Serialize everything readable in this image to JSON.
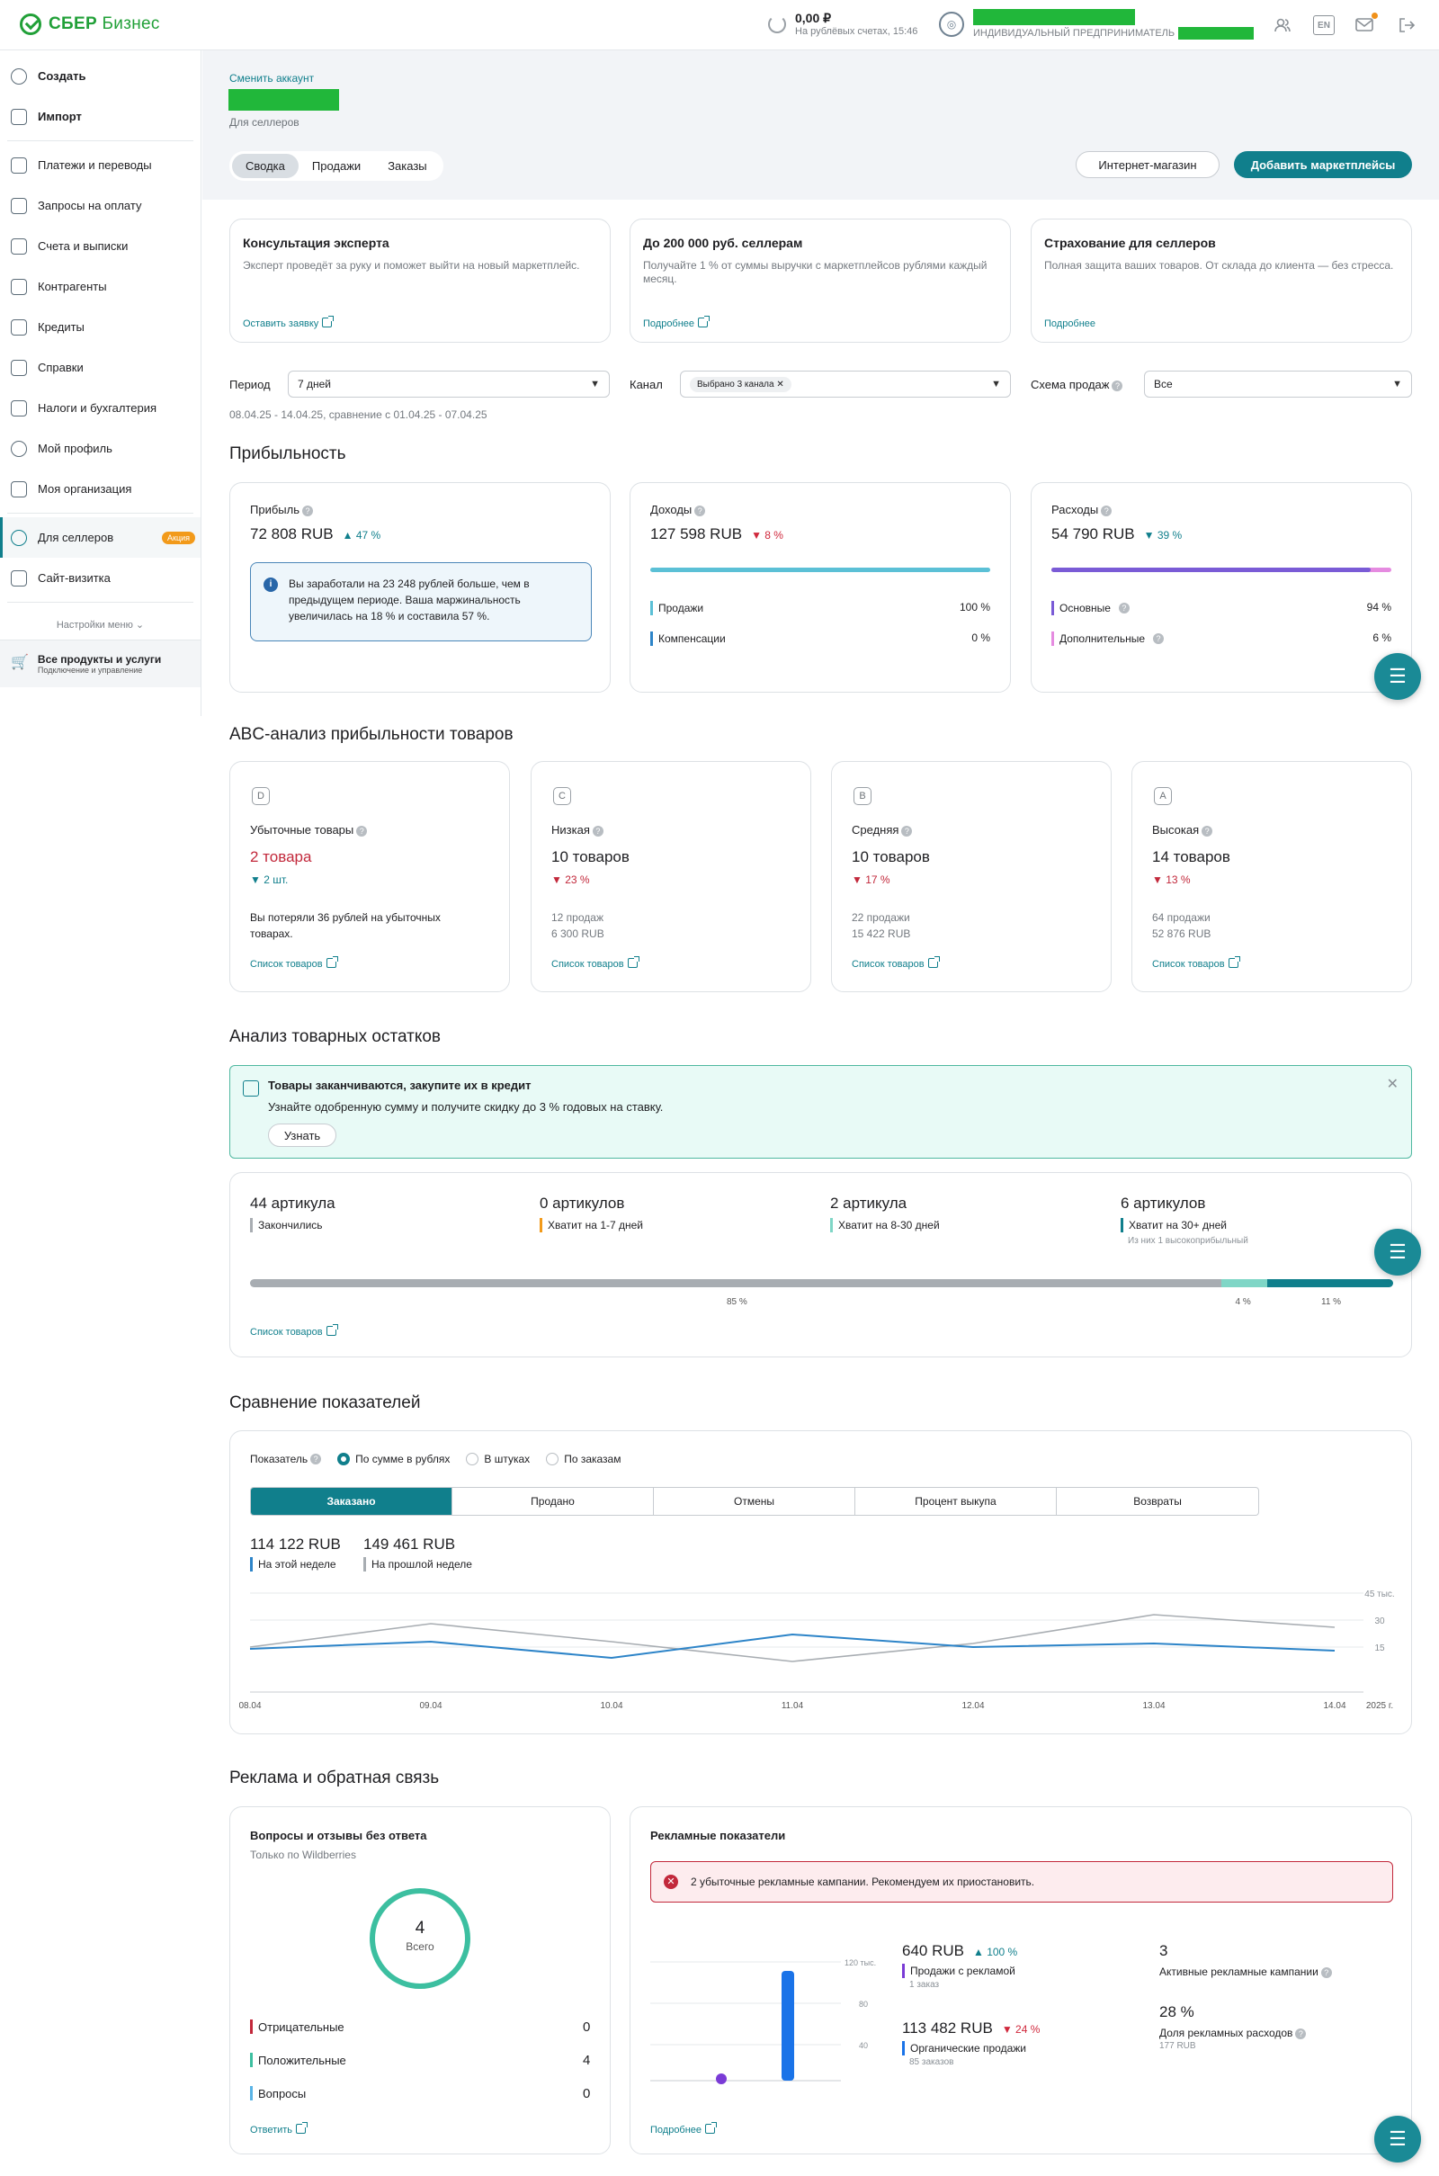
{
  "brand": {
    "name_a": "СБЕР",
    "name_b": "Бизнес"
  },
  "top": {
    "balance_amount": "0,00 ₽",
    "balance_sub": "На рублёвых счетах, 15:46",
    "org_type": "ИНДИВИДУАЛЬНЫЙ ПРЕДПРИНИМАТЕЛЬ",
    "lang": "EN",
    "icons": [
      "refresh-icon",
      "profile-icon",
      "mail-icon",
      "logout-icon"
    ]
  },
  "sidebar": {
    "top_items": [
      {
        "label": "Создать",
        "icon": "plus-icon"
      },
      {
        "label": "Импорт",
        "icon": "import-icon"
      }
    ],
    "items": [
      {
        "label": "Платежи и переводы"
      },
      {
        "label": "Запросы на оплату"
      },
      {
        "label": "Счета и выписки"
      },
      {
        "label": "Контрагенты"
      },
      {
        "label": "Кредиты"
      },
      {
        "label": "Справки"
      },
      {
        "label": "Налоги и бухгалтерия"
      },
      {
        "label": "Мой профиль"
      },
      {
        "label": "Моя организация"
      }
    ],
    "sellers": {
      "label": "Для селлеров",
      "promo": "Акция"
    },
    "site": {
      "label": "Сайт-визитка"
    },
    "settings": "Настройки меню",
    "bottom": {
      "title": "Все продукты и услуги",
      "sub": "Подключение и управление"
    }
  },
  "header": {
    "switch": "Сменить аккаунт",
    "for": "Для селлеров",
    "tabs": [
      "Сводка",
      "Продажи",
      "Заказы"
    ],
    "btn_shop": "Интернет-магазин",
    "btn_add": "Добавить маркетплейсы"
  },
  "promo": [
    {
      "title": "Консультация эксперта",
      "text": "Эксперт проведёт за руку и поможет выйти на новый маркетплейс.",
      "link": "Оставить заявку"
    },
    {
      "title": "До 200 000 руб. селлерам",
      "text": "Получайте 1 % от суммы выручки с маркетплейсов рублями каждый месяц.",
      "link": "Подробнее"
    },
    {
      "title": "Страхование для селлеров",
      "text": "Полная защита ваших товаров. От склада до клиента — без стресса.",
      "link": "Подробнее"
    }
  ],
  "filters": {
    "period_label": "Период",
    "period_value": "7 дней",
    "channel_label": "Канал",
    "channel_value": "Выбрано 3 канала",
    "scheme_label": "Схема продаж",
    "scheme_value": "Все",
    "range": "08.04.25 - 14.04.25, сравнение с 01.04.25 - 07.04.25"
  },
  "profit": {
    "title": "Прибыльность",
    "profit": {
      "label": "Прибыль",
      "value": "72 808 RUB",
      "delta": "▲ 47 %",
      "info": "Вы заработали на 23 248 рублей больше, чем в предыдущем периоде. Ваша маржинальность увеличилась на 18 % и составила 57 %."
    },
    "income": {
      "label": "Доходы",
      "value": "127 598 RUB",
      "delta": "▼ 8 %",
      "rows": [
        {
          "label": "Продажи",
          "value": "100 %"
        },
        {
          "label": "Компенсации",
          "value": "0 %"
        }
      ],
      "bar_share": 1.0
    },
    "expense": {
      "label": "Расходы",
      "value": "54 790 RUB",
      "delta": "▼ 39 %",
      "rows": [
        {
          "label": "Основные",
          "value": "94 %"
        },
        {
          "label": "Дополнительные",
          "value": "6 %"
        }
      ],
      "bar_share": 0.94
    },
    "colors": {
      "income": "#5bc0d6",
      "expense_main": "#7a5bd6",
      "expense_extra": "#e58be0"
    }
  },
  "abc": {
    "title": "ABC-анализ прибыльности товаров",
    "cards": [
      {
        "letter": "D",
        "title": "Убыточные товары",
        "value": "2 товара",
        "delta": "▼ 2 шт.",
        "m1": "Вы потеряли 36 рублей на убыточных",
        "m2": "товарах.",
        "link": "Список товаров"
      },
      {
        "letter": "C",
        "title": "Низкая",
        "value": "10 товаров",
        "delta": "▼ 23 %",
        "m1": "12 продаж",
        "m2": "6 300 RUB",
        "link": "Список товаров"
      },
      {
        "letter": "B",
        "title": "Средняя",
        "value": "10 товаров",
        "delta": "▼ 17 %",
        "m1": "22 продажи",
        "m2": "15 422 RUB",
        "link": "Список товаров"
      },
      {
        "letter": "A",
        "title": "Высокая",
        "value": "14 товаров",
        "delta": "▼ 13 %",
        "m1": "64 продажи",
        "m2": "52 876 RUB",
        "link": "Список товаров"
      }
    ]
  },
  "stock": {
    "title": "Анализ товарных остатков",
    "alert": {
      "title": "Товары заканчиваются, закупите их в кредит",
      "text": "Узнайте одобренную сумму и получите скидку до 3 % годовых на ставку.",
      "button": "Узнать"
    },
    "cols": [
      {
        "n": "44 артикула",
        "l": "Закончились",
        "color": "#a8adb2"
      },
      {
        "n": "0 артикулов",
        "l": "Хватит на 1-7 дней",
        "color": "#f29a1a"
      },
      {
        "n": "2 артикула",
        "l": "Хватит на 8-30 дней",
        "color": "#7fd6c6"
      },
      {
        "n": "6 артикулов",
        "l": "Хватит на 30+ дней",
        "x": "Из них 1 высокоприбыльный",
        "color": "#107f8c"
      }
    ],
    "shares": [
      0.85,
      0.04,
      0.11
    ],
    "pcts": [
      "85 %",
      "4 %",
      "11 %"
    ],
    "link": "Список товаров"
  },
  "compare": {
    "title": "Сравнение показателей",
    "metric_label": "Показатель",
    "radios": [
      "По сумме в рублях",
      "В штуках",
      "По заказам"
    ],
    "tabs": [
      "Заказано",
      "Продано",
      "Отмены",
      "Процент выкупа",
      "Возвраты"
    ],
    "cur_value": "114 122 RUB",
    "cur_label": "На этой неделе",
    "prev_value": "149 461 RUB",
    "prev_label": "На прошлой неделе"
  },
  "chart_data": {
    "type": "line",
    "x": [
      "08.04",
      "09.04",
      "10.04",
      "11.04",
      "12.04",
      "13.04",
      "14.04"
    ],
    "x_suffix": "2025 г.",
    "series": [
      {
        "name": "На этой неделе",
        "values": [
          14,
          18,
          9,
          22,
          15,
          17,
          13
        ],
        "color": "#2d84c8"
      },
      {
        "name": "На прошлой неделе",
        "values": [
          15,
          28,
          18,
          7,
          17,
          33,
          26
        ],
        "color": "#a8adb2"
      }
    ],
    "y_ticks": [
      "45 тыс.",
      "30",
      "15"
    ],
    "ylim": [
      0,
      45
    ]
  },
  "ads": {
    "title": "Реклама и обратная связь",
    "reviews": {
      "title": "Вопросы и отзывы без ответа",
      "sub": "Только по Wildberries",
      "total": "4",
      "total_label": "Всего",
      "rows": [
        {
          "label": "Отрицательные",
          "value": "0",
          "color": "#c2283b"
        },
        {
          "label": "Положительные",
          "value": "4",
          "color": "#3cbfa0"
        },
        {
          "label": "Вопросы",
          "value": "0",
          "color": "#5ab4e6"
        }
      ],
      "link": "Ответить"
    },
    "stats": {
      "title": "Рекламные показатели",
      "alert": "2 убыточные рекламные кампании. Рекомендуем их приостановить.",
      "y_ticks": [
        "120 тыс.",
        "80",
        "40"
      ],
      "ad_sales_value": "640 RUB",
      "ad_sales_delta": "▲ 100 %",
      "ad_sales_label": "Продажи с рекламой",
      "ad_sales_sub": "1 заказ",
      "org_value": "113 482 RUB",
      "org_delta": "▼ 24 %",
      "org_label": "Органические продажи",
      "org_sub": "85 заказов",
      "active_value": "3",
      "active_label": "Активные рекламные кампании",
      "share_value": "28 %",
      "share_label": "Доля рекламных расходов",
      "share_sub": "177 RUB",
      "link": "Подробнее"
    }
  }
}
